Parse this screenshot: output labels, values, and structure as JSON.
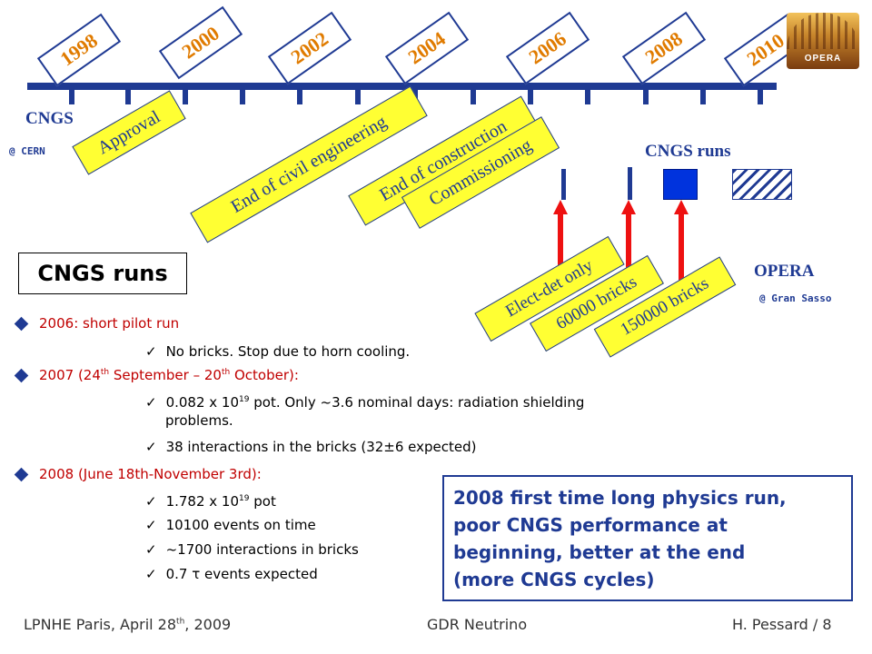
{
  "timeline": {
    "years": [
      "1998",
      "2000",
      "2002",
      "2004",
      "2006",
      "2008",
      "2010"
    ]
  },
  "cngs_label": "CNGS",
  "cern_label": "@ CERN",
  "milestones": {
    "approval": "Approval",
    "civil": "End of civil engineering",
    "construction": "End of construction",
    "commissioning": "Commissioning"
  },
  "runs_header": "CNGS runs",
  "opera_label": "OPERA",
  "gransasso_label": "@ Gran Sasso",
  "phases": {
    "elect": "Elect-det only",
    "b60": "60000 bricks",
    "b150": "150000 bricks"
  },
  "title_box": "CNGS runs",
  "bullets": {
    "y2006": {
      "year": "2006",
      "text": ": short pilot run",
      "items": [
        "No bricks. Stop due to horn cooling."
      ]
    },
    "y2007": {
      "year": "2007",
      "text_pre": " (24",
      "sup1": "th",
      "text_mid": " September – 20",
      "sup2": "th",
      "text_post": " October):",
      "item1_pre": "0.082  x  10",
      "item1_sup": "19",
      "item1_post": " pot.  Only  ~3.6  nominal  days:  radiation  shielding",
      "item1_line2": "problems.",
      "item2": "38 interactions in the bricks (32±6 expected)"
    },
    "y2008": {
      "year": "2008",
      "text": " (June 18th-November 3rd):",
      "item1_pre": "1.782 x 10",
      "item1_sup": "19",
      "item1_post": " pot",
      "item2": "10100 events on time",
      "item3": "~1700 interactions in bricks",
      "item4": "0.7 τ events expected"
    }
  },
  "highlight_box": {
    "line1": "2008 first time long physics run,",
    "line2": "poor CNGS performance at",
    "line3": "beginning, better at the end",
    "line4": "(more CNGS cycles)"
  },
  "footer": {
    "left_pre": "LPNHE Paris, April 28",
    "left_sup": "th",
    "left_post": ", 2009",
    "center": "GDR Neutrino",
    "right": "H. Pessard  /  8"
  },
  "colors": {
    "navy": "#1f3a93",
    "orange": "#e07b00",
    "yellow": "#ffff33",
    "red": "#c00000",
    "arrow": "#ee1111"
  }
}
